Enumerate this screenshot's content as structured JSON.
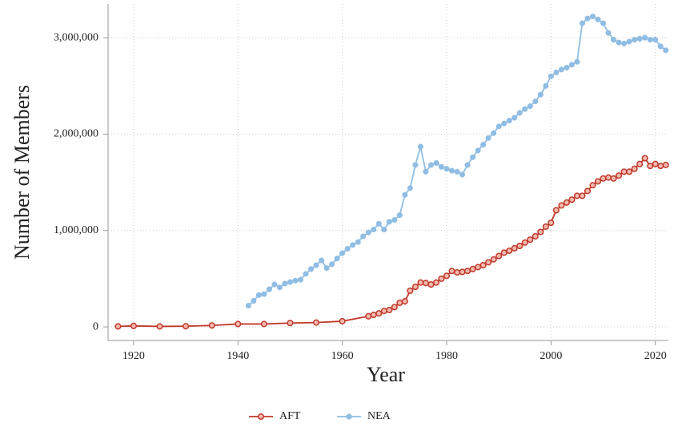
{
  "chart_data": {
    "type": "line",
    "x_label": "Year",
    "y_label": "Number of Members",
    "xlim": [
      1915.1,
      2022.5
    ],
    "ylim": [
      -141000,
      3350000
    ],
    "xticks": [
      1920,
      1940,
      1960,
      1980,
      2000,
      2020
    ],
    "yticks": [
      0,
      {
        "value": 1000000,
        "label": "1,000,000"
      },
      {
        "value": 2000000,
        "label": "2,000,000"
      },
      {
        "value": 3000000,
        "label": "3,000,000"
      }
    ],
    "grid": true,
    "legend": "bottom",
    "series": [
      {
        "name": "AFT",
        "color": "#c0392b",
        "x": [
          1917,
          1920,
          1925,
          1930,
          1935,
          1940,
          1945,
          1950,
          1955,
          1960,
          1965,
          1966,
          1967,
          1968,
          1969,
          1970,
          1971,
          1972,
          1973,
          1974,
          1975,
          1976,
          1977,
          1978,
          1979,
          1980,
          1981,
          1982,
          1983,
          1984,
          1985,
          1986,
          1987,
          1988,
          1989,
          1990,
          1991,
          1992,
          1993,
          1994,
          1995,
          1996,
          1997,
          1998,
          1999,
          2000,
          2001,
          2002,
          2003,
          2004,
          2005,
          2006,
          2007,
          2008,
          2009,
          2010,
          2011,
          2012,
          2013,
          2014,
          2015,
          2016,
          2017,
          2018,
          2019,
          2020,
          2021,
          2022
        ],
        "values": [
          5000,
          10000,
          5000,
          7000,
          15000,
          30000,
          30000,
          40000,
          45000,
          59000,
          110000,
          125000,
          140000,
          165000,
          175000,
          205000,
          250000,
          265000,
          375000,
          415000,
          460000,
          455000,
          440000,
          460000,
          500000,
          530000,
          580000,
          565000,
          570000,
          580000,
          600000,
          620000,
          640000,
          670000,
          700000,
          735000,
          770000,
          790000,
          815000,
          840000,
          875000,
          905000,
          940000,
          985000,
          1040000,
          1080000,
          1210000,
          1260000,
          1290000,
          1320000,
          1360000,
          1360000,
          1410000,
          1470000,
          1510000,
          1540000,
          1550000,
          1540000,
          1570000,
          1610000,
          1610000,
          1640000,
          1690000,
          1750000,
          1670000,
          1690000,
          1670000,
          1680000
        ]
      },
      {
        "name": "NEA",
        "color": "#8fbde3",
        "x": [
          1942,
          1943,
          1944,
          1945,
          1946,
          1947,
          1948,
          1949,
          1950,
          1951,
          1952,
          1953,
          1954,
          1955,
          1956,
          1957,
          1958,
          1959,
          1960,
          1961,
          1962,
          1963,
          1964,
          1965,
          1966,
          1967,
          1968,
          1969,
          1970,
          1971,
          1972,
          1973,
          1974,
          1975,
          1976,
          1977,
          1978,
          1979,
          1980,
          1981,
          1982,
          1983,
          1984,
          1985,
          1986,
          1987,
          1988,
          1989,
          1990,
          1991,
          1992,
          1993,
          1994,
          1995,
          1996,
          1997,
          1998,
          1999,
          2000,
          2001,
          2002,
          2003,
          2004,
          2005,
          2006,
          2007,
          2008,
          2009,
          2010,
          2011,
          2012,
          2013,
          2014,
          2015,
          2016,
          2017,
          2018,
          2019,
          2020,
          2021,
          2022
        ],
        "values": [
          220000,
          270000,
          330000,
          340000,
          390000,
          440000,
          410000,
          450000,
          465000,
          480000,
          490000,
          550000,
          600000,
          640000,
          690000,
          610000,
          650000,
          710000,
          765000,
          810000,
          850000,
          880000,
          940000,
          980000,
          1010000,
          1070000,
          1010000,
          1090000,
          1110000,
          1160000,
          1370000,
          1440000,
          1680000,
          1870000,
          1610000,
          1680000,
          1700000,
          1660000,
          1640000,
          1620000,
          1610000,
          1580000,
          1680000,
          1760000,
          1830000,
          1890000,
          1960000,
          2010000,
          2080000,
          2110000,
          2140000,
          2170000,
          2220000,
          2260000,
          2290000,
          2340000,
          2410000,
          2500000,
          2600000,
          2640000,
          2670000,
          2690000,
          2720000,
          2750000,
          3150000,
          3200000,
          3220000,
          3190000,
          3150000,
          3050000,
          2980000,
          2950000,
          2940000,
          2960000,
          2980000,
          2990000,
          3000000,
          2980000,
          2980000,
          2910000,
          2870000
        ]
      }
    ]
  }
}
